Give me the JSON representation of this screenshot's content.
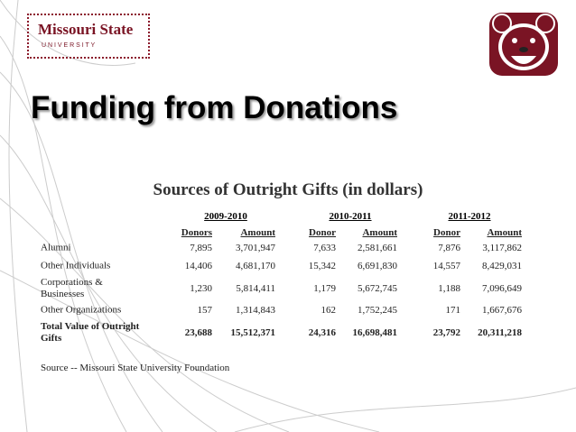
{
  "header": {
    "logo_name": "Missouri State",
    "logo_subtitle": "U N I V E R S I T Y",
    "title": "Funding from Donations"
  },
  "table": {
    "title": "Sources of Outright Gifts (in dollars)",
    "periods": [
      "2009-2010",
      "2010-2011",
      "2011-2012"
    ],
    "columns": [
      "Donors",
      "Amount",
      "Donor",
      "Amount",
      "Donor",
      "Amount"
    ],
    "rows": [
      {
        "label": "Alumni",
        "cells": [
          "7,895",
          "3,701,947",
          "7,633",
          "2,581,661",
          "7,876",
          "3,117,862"
        ]
      },
      {
        "label": "Other Individuals",
        "cells": [
          "14,406",
          "4,681,170",
          "15,342",
          "6,691,830",
          "14,557",
          "8,429,031"
        ]
      },
      {
        "label": "Corporations & Businesses",
        "cells": [
          "1,230",
          "5,814,411",
          "1,179",
          "5,672,745",
          "1,188",
          "7,096,649"
        ]
      },
      {
        "label": "Other Organizations",
        "cells": [
          "157",
          "1,314,843",
          "162",
          "1,752,245",
          "171",
          "1,667,676"
        ]
      },
      {
        "label": "Total Value of Outright Gifts",
        "cells": [
          "23,688",
          "15,512,371",
          "24,316",
          "16,698,481",
          "23,792",
          "20,311,218"
        ]
      }
    ],
    "source": "Source -- Missouri State University Foundation"
  }
}
